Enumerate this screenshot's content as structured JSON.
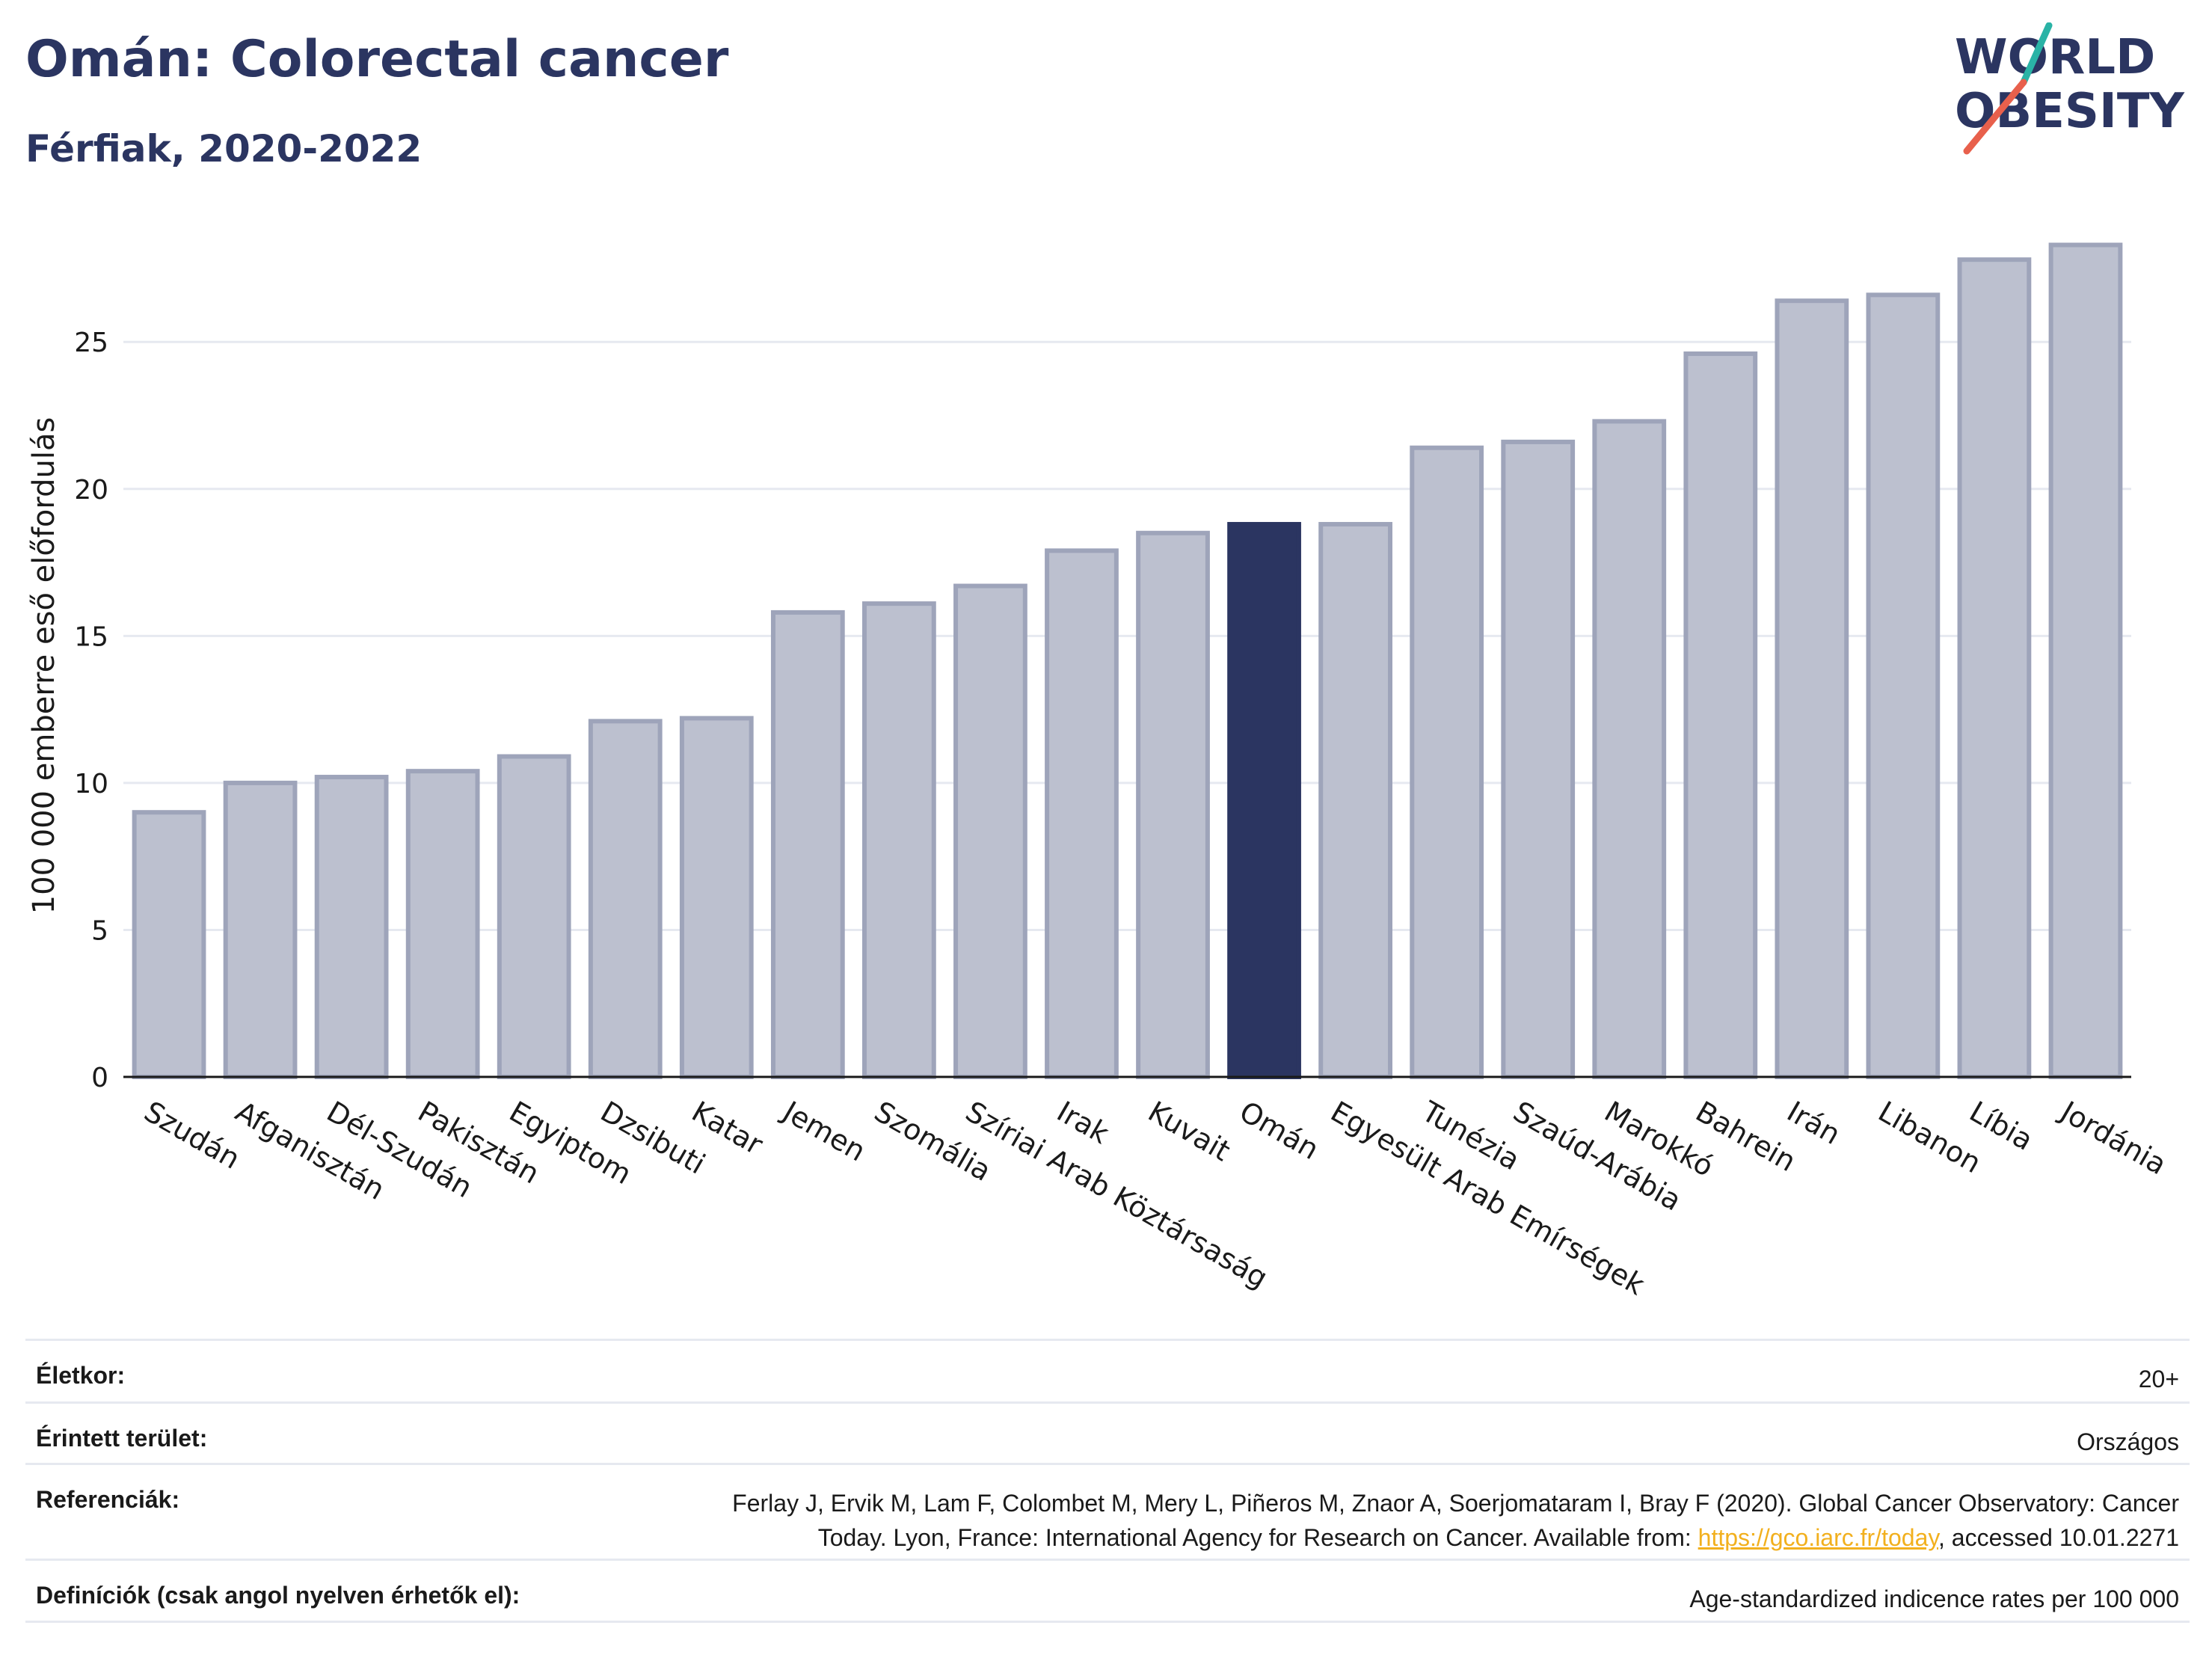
{
  "header": {
    "title": "Omán: Colorectal cancer",
    "subtitle": "Férfiak, 2020-2022"
  },
  "logo": {
    "line1": "WORLD",
    "line2": "OBESITY",
    "accent_teal": "#2ab3a6",
    "accent_red": "#e8604c"
  },
  "colors": {
    "bar": "#bcc0cf",
    "bar_border": "#9ea4ba",
    "highlight": "#2b3561",
    "text": "#2b3561",
    "grid": "#e6e9f0",
    "link": "#f2b01e"
  },
  "chart_data": {
    "type": "bar",
    "title": "Omán: Colorectal cancer",
    "subtitle": "Férfiak, 2020-2022",
    "ylabel": "100 000 emberre eső előfordulás",
    "xlabel": "",
    "ylim": [
      0,
      29
    ],
    "yticks": [
      0,
      5,
      10,
      15,
      20,
      25
    ],
    "grid": true,
    "highlight": "Omán",
    "categories": [
      "Szudán",
      "Afganisztán",
      "Dél-Szudán",
      "Pakisztán",
      "Egyiptom",
      "Dzsibuti",
      "Katar",
      "Jemen",
      "Szomália",
      "Szíriai Arab Köztársaság",
      "Irak",
      "Kuvait",
      "Omán",
      "Egyesült Arab Emírségek",
      "Tunézia",
      "Szaúd-Arábia",
      "Marokkó",
      "Bahrein",
      "Irán",
      "Libanon",
      "Líbia",
      "Jordánia"
    ],
    "values": [
      9.0,
      10.0,
      10.2,
      10.4,
      10.9,
      12.1,
      12.2,
      15.8,
      16.1,
      16.7,
      17.9,
      18.5,
      18.8,
      18.8,
      21.4,
      21.6,
      22.3,
      24.6,
      26.4,
      26.6,
      27.8,
      28.3
    ]
  },
  "info": {
    "age_label": "Életkor:",
    "age_value": "20+",
    "area_label": "Érintett terület:",
    "area_value": "Országos",
    "ref_label": "Referenciák:",
    "ref_line1": "Ferlay J, Ervik M, Lam F, Colombet M, Mery L, Piñeros M, Znaor A, Soerjomataram I, Bray F (2020). Global Cancer Observatory: Cancer",
    "ref_line2_pre": "Today. Lyon, France: International Agency for Research on Cancer. Available from: ",
    "ref_link": "https://gco.iarc.fr/today",
    "ref_line2_post": ", accessed 10.01.2271",
    "def_label": "Definíciók (csak angol nyelven érhetők el):",
    "def_value": "Age-standardized indicence rates per 100 000"
  }
}
